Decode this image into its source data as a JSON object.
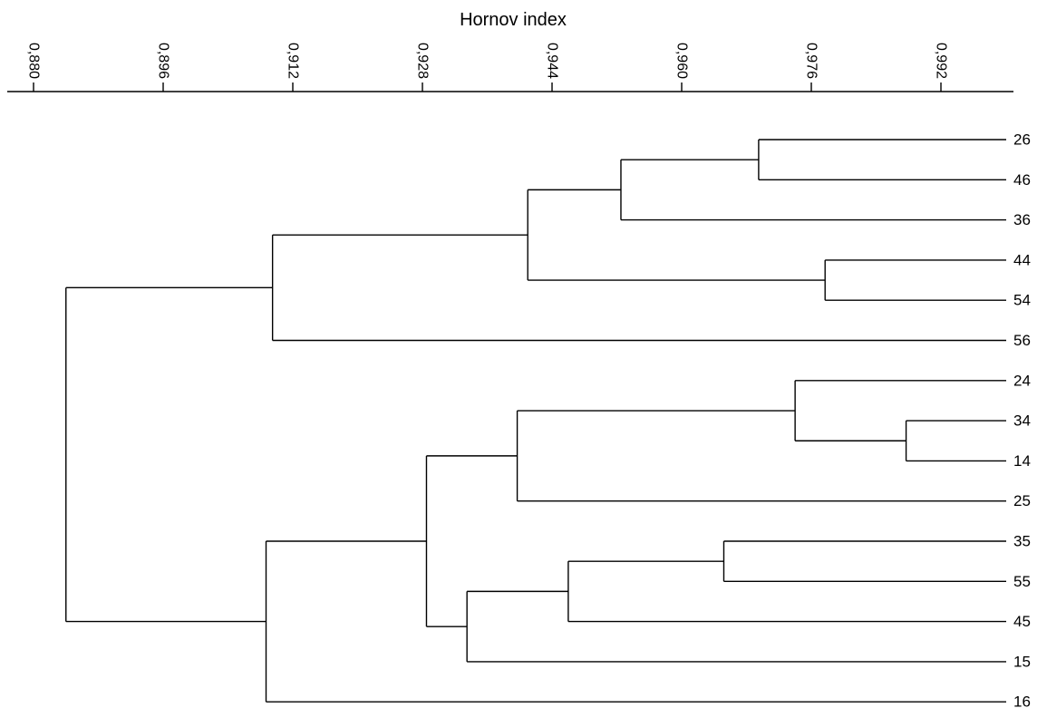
{
  "chart_data": {
    "type": "dendrogram",
    "title": "",
    "xlabel": "Hornov index",
    "axis": {
      "min": 0.88,
      "max": 1.0,
      "ticks": [
        0.88,
        0.896,
        0.912,
        0.928,
        0.944,
        0.96,
        0.976,
        0.992
      ],
      "tick_labels": [
        "0,880",
        "0,896",
        "0,912",
        "0,928",
        "0,944",
        "0,960",
        "0,976",
        "0,992"
      ]
    },
    "leaves": [
      "26",
      "46",
      "36",
      "44",
      "54",
      "56",
      "24",
      "34",
      "14",
      "25",
      "35",
      "55",
      "45",
      "15",
      "16"
    ],
    "merges": [
      {
        "id": "m1",
        "children": [
          "L0",
          "L1"
        ],
        "height": 0.9695
      },
      {
        "id": "m2",
        "children": [
          "m1",
          "L2"
        ],
        "height": 0.9525
      },
      {
        "id": "m3",
        "children": [
          "L3",
          "L4"
        ],
        "height": 0.9777
      },
      {
        "id": "m4",
        "children": [
          "m2",
          "m3"
        ],
        "height": 0.941
      },
      {
        "id": "m5",
        "children": [
          "m4",
          "L5"
        ],
        "height": 0.9095
      },
      {
        "id": "m6",
        "children": [
          "L7",
          "L8"
        ],
        "height": 0.9877
      },
      {
        "id": "m7",
        "children": [
          "L6",
          "m6"
        ],
        "height": 0.974
      },
      {
        "id": "m8",
        "children": [
          "m7",
          "L9"
        ],
        "height": 0.9397
      },
      {
        "id": "m9",
        "children": [
          "L10",
          "L11"
        ],
        "height": 0.9652
      },
      {
        "id": "m10",
        "children": [
          "m9",
          "L12"
        ],
        "height": 0.946
      },
      {
        "id": "m11",
        "children": [
          "m10",
          "L13"
        ],
        "height": 0.9335
      },
      {
        "id": "m12",
        "children": [
          "m8",
          "m11"
        ],
        "height": 0.9285
      },
      {
        "id": "m13",
        "children": [
          "m12",
          "L14"
        ],
        "height": 0.9087
      },
      {
        "id": "m14",
        "children": [
          "m5",
          "m13"
        ],
        "height": 0.884
      }
    ]
  }
}
